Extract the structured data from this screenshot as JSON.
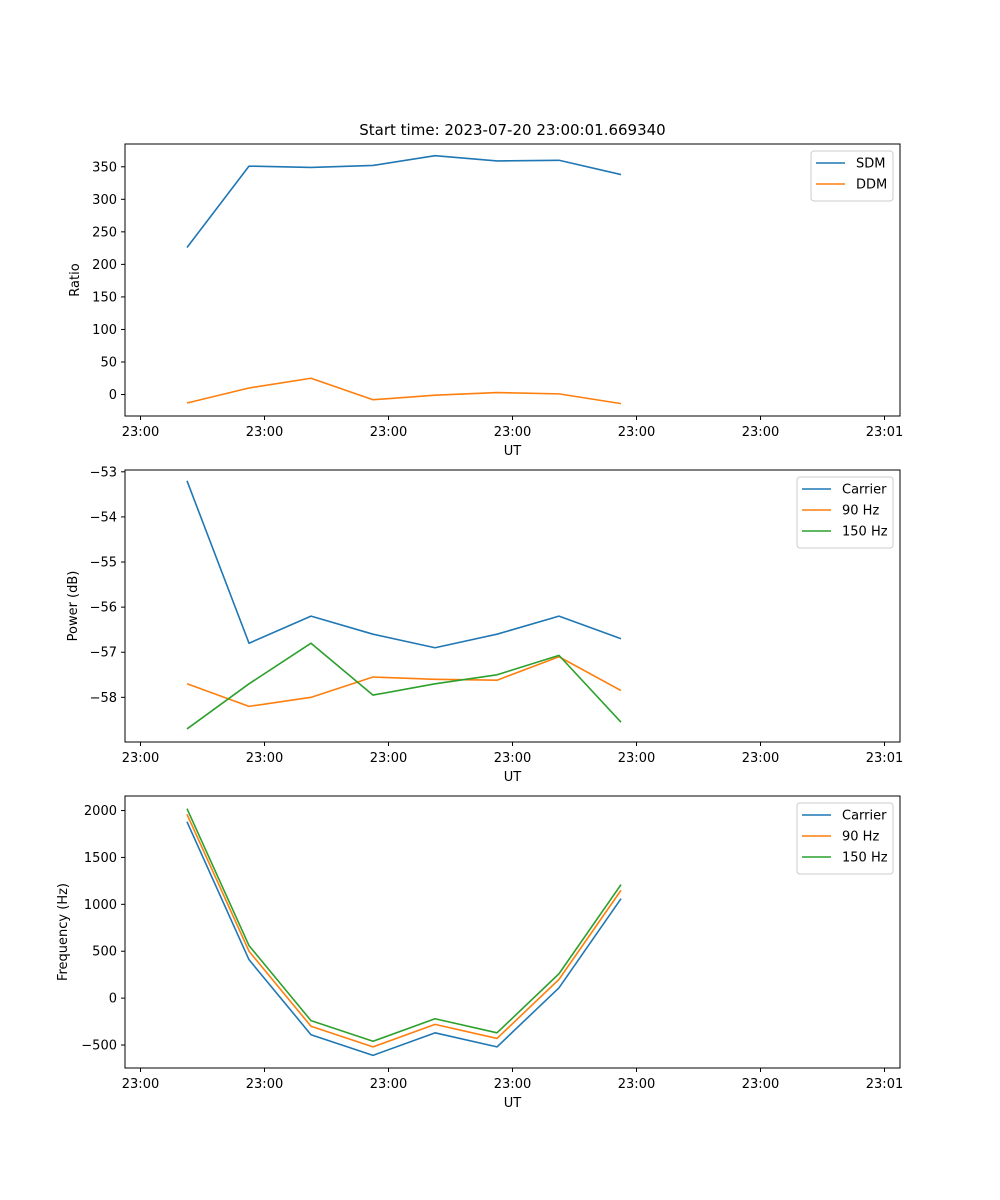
{
  "chart_data": [
    {
      "type": "line",
      "title": "Start time: 2023-07-20 23:00:01.669340",
      "xlabel": "UT",
      "ylabel": "Ratio",
      "x": [
        1,
        2,
        3,
        4,
        5,
        6,
        7,
        8
      ],
      "xlim": [
        0,
        12.5
      ],
      "x_ticks": [
        0.25,
        2.25,
        4.25,
        6.25,
        8.25,
        10.25,
        12.25
      ],
      "x_tick_labels": [
        "23:00",
        "23:00",
        "23:00",
        "23:00",
        "23:00",
        "23:00",
        "23:01"
      ],
      "ylim": [
        -33,
        385
      ],
      "y_ticks": [
        0,
        50,
        100,
        150,
        200,
        250,
        300,
        350
      ],
      "y_tick_labels": [
        "0",
        "50",
        "100",
        "150",
        "200",
        "250",
        "300",
        "350"
      ],
      "legend_position": "top-right",
      "series": [
        {
          "name": "SDM",
          "color": "#1f77b4",
          "values": [
            226,
            351,
            349,
            352,
            367,
            359,
            360,
            338
          ]
        },
        {
          "name": "DDM",
          "color": "#ff7f0e",
          "values": [
            -13,
            10,
            25,
            -8,
            -1,
            3,
            1,
            -14
          ]
        }
      ]
    },
    {
      "type": "line",
      "title": "",
      "xlabel": "UT",
      "ylabel": "Power (dB)",
      "x": [
        1,
        2,
        3,
        4,
        5,
        6,
        7,
        8
      ],
      "xlim": [
        0,
        12.5
      ],
      "x_ticks": [
        0.25,
        2.25,
        4.25,
        6.25,
        8.25,
        10.25,
        12.25
      ],
      "x_tick_labels": [
        "23:00",
        "23:00",
        "23:00",
        "23:00",
        "23:00",
        "23:00",
        "23:01"
      ],
      "ylim": [
        -58.99,
        -52.96
      ],
      "y_ticks": [
        -58,
        -57,
        -56,
        -55,
        -54,
        -53
      ],
      "y_tick_labels": [
        "−58",
        "−57",
        "−56",
        "−55",
        "−54",
        "−53"
      ],
      "legend_position": "top-right",
      "series": [
        {
          "name": "Carrier",
          "color": "#1f77b4",
          "values": [
            -53.2,
            -56.8,
            -56.2,
            -56.6,
            -56.9,
            -56.6,
            -56.2,
            -56.7
          ]
        },
        {
          "name": "90 Hz",
          "color": "#ff7f0e",
          "values": [
            -57.7,
            -58.2,
            -58.0,
            -57.55,
            -57.6,
            -57.62,
            -57.1,
            -57.85
          ]
        },
        {
          "name": "150 Hz",
          "color": "#2ca02c",
          "values": [
            -58.7,
            -57.7,
            -56.8,
            -57.95,
            -57.7,
            -57.5,
            -57.07,
            -58.55
          ]
        }
      ]
    },
    {
      "type": "line",
      "title": "",
      "xlabel": "UT",
      "ylabel": "Frequency (Hz)",
      "x": [
        1,
        2,
        3,
        4,
        5,
        6,
        7,
        8
      ],
      "xlim": [
        0,
        12.5
      ],
      "x_ticks": [
        0.25,
        2.25,
        4.25,
        6.25,
        8.25,
        10.25,
        12.25
      ],
      "x_tick_labels": [
        "23:00",
        "23:00",
        "23:00",
        "23:00",
        "23:00",
        "23:00",
        "23:01"
      ],
      "ylim": [
        -745,
        2155
      ],
      "y_ticks": [
        -500,
        0,
        500,
        1000,
        1500,
        2000
      ],
      "y_tick_labels": [
        "−500",
        "0",
        "500",
        "1000",
        "1500",
        "2000"
      ],
      "legend_position": "top-right",
      "series": [
        {
          "name": "Carrier",
          "color": "#1f77b4",
          "values": [
            1880,
            410,
            -390,
            -610,
            -370,
            -520,
            110,
            1060
          ]
        },
        {
          "name": "90 Hz",
          "color": "#ff7f0e",
          "values": [
            1960,
            500,
            -300,
            -520,
            -280,
            -430,
            200,
            1150
          ]
        },
        {
          "name": "150 Hz",
          "color": "#2ca02c",
          "values": [
            2020,
            560,
            -240,
            -460,
            -220,
            -370,
            260,
            1210
          ]
        }
      ]
    }
  ]
}
